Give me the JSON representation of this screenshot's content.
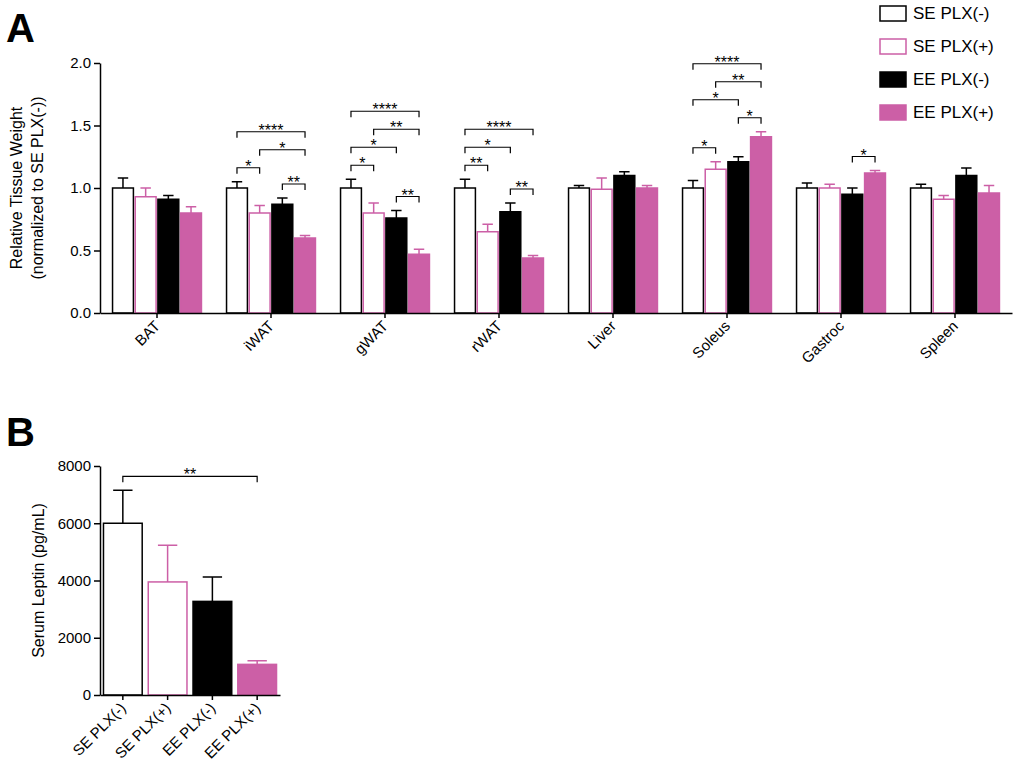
{
  "chart_data": [
    {
      "type": "bar",
      "title": "A",
      "ylabel": "Relative Tissue Weight\n(normalized to SE PLX(-))",
      "categories": [
        "BAT",
        "iWAT",
        "gWAT",
        "rWAT",
        "Liver",
        "Soleus",
        "Gastroc",
        "Spleen"
      ],
      "series": [
        {
          "name": "SE PLX(-)",
          "color": "#000000",
          "marker": "open",
          "values": [
            1.0,
            1.0,
            1.0,
            1.0,
            1.0,
            1.0,
            1.0,
            1.0
          ],
          "errors": [
            0.08,
            0.05,
            0.07,
            0.07,
            0.02,
            0.06,
            0.04,
            0.03
          ]
        },
        {
          "name": "SE PLX(+)",
          "color": "#cc5fa6",
          "marker": "open",
          "values": [
            0.93,
            0.8,
            0.8,
            0.65,
            0.99,
            1.15,
            1.0,
            0.91
          ],
          "errors": [
            0.07,
            0.06,
            0.08,
            0.06,
            0.09,
            0.06,
            0.03,
            0.03
          ]
        },
        {
          "name": "EE PLX(-)",
          "color": "#000000",
          "marker": "filled",
          "values": [
            0.91,
            0.87,
            0.76,
            0.81,
            1.1,
            1.21,
            0.95,
            1.1
          ],
          "errors": [
            0.03,
            0.05,
            0.06,
            0.07,
            0.03,
            0.04,
            0.05,
            0.06
          ]
        },
        {
          "name": "EE PLX(+)",
          "color": "#cc5fa6",
          "marker": "filled",
          "values": [
            0.8,
            0.6,
            0.47,
            0.44,
            1.0,
            1.41,
            1.12,
            0.96
          ],
          "errors": [
            0.05,
            0.02,
            0.04,
            0.02,
            0.02,
            0.04,
            0.02,
            0.06
          ]
        }
      ],
      "ylim": [
        0,
        2
      ],
      "yticks": [
        {
          "value": 0,
          "label": "0.0"
        },
        0.5,
        {
          "value": 1,
          "label": "1.0"
        },
        1.5,
        {
          "value": 2,
          "label": "2.0"
        }
      ],
      "legend": "top-right",
      "significance": [
        {
          "category": 1,
          "from": 0,
          "to": 1,
          "label": "*"
        },
        {
          "category": 1,
          "from": 2,
          "to": 3,
          "label": "**"
        },
        {
          "category": 1,
          "from": 1,
          "to": 3,
          "label": "*"
        },
        {
          "category": 1,
          "from": 0,
          "to": 3,
          "label": "****"
        },
        {
          "category": 2,
          "from": 0,
          "to": 1,
          "label": "*"
        },
        {
          "category": 2,
          "from": 2,
          "to": 3,
          "label": "**"
        },
        {
          "category": 2,
          "from": 0,
          "to": 2,
          "label": "*"
        },
        {
          "category": 2,
          "from": 1,
          "to": 3,
          "label": "**"
        },
        {
          "category": 2,
          "from": 0,
          "to": 3,
          "label": "****"
        },
        {
          "category": 3,
          "from": 0,
          "to": 1,
          "label": "**"
        },
        {
          "category": 3,
          "from": 2,
          "to": 3,
          "label": "**"
        },
        {
          "category": 3,
          "from": 0,
          "to": 2,
          "label": "*"
        },
        {
          "category": 3,
          "from": 0,
          "to": 3,
          "label": "****"
        },
        {
          "category": 5,
          "from": 0,
          "to": 1,
          "label": "*"
        },
        {
          "category": 5,
          "from": 2,
          "to": 3,
          "label": "*"
        },
        {
          "category": 5,
          "from": 0,
          "to": 2,
          "label": "*"
        },
        {
          "category": 5,
          "from": 1,
          "to": 3,
          "label": "**"
        },
        {
          "category": 5,
          "from": 0,
          "to": 3,
          "label": "****"
        },
        {
          "category": 6,
          "from": 2,
          "to": 3,
          "label": "*"
        }
      ]
    },
    {
      "type": "bar",
      "title": "B",
      "ylabel": "Serum Leptin (pg/mL)",
      "categories": [
        "SE PLX(-)",
        "SE PLX(+)",
        "EE PLX(-)",
        "EE PLX(+)"
      ],
      "series": [
        {
          "color": "#000000",
          "marker": "open",
          "values": [
            6000,
            null,
            null,
            null
          ],
          "errors": [
            1150,
            null,
            null,
            null
          ]
        },
        {
          "color": "#cc5fa6",
          "marker": "open",
          "values": [
            null,
            3950,
            null,
            null
          ],
          "errors": [
            null,
            1280,
            null,
            null
          ]
        },
        {
          "color": "#000000",
          "marker": "filled",
          "values": [
            null,
            null,
            3270,
            null
          ],
          "errors": [
            null,
            null,
            850,
            null
          ]
        },
        {
          "color": "#cc5fa6",
          "marker": "filled",
          "values": [
            null,
            null,
            null,
            1070
          ],
          "errors": [
            null,
            null,
            null,
            130
          ]
        }
      ],
      "ylim": [
        0,
        8000
      ],
      "yticks": [
        0,
        2000,
        4000,
        6000,
        8000
      ],
      "significance": [
        {
          "from": 0,
          "to": 3,
          "label": "**"
        }
      ]
    }
  ]
}
